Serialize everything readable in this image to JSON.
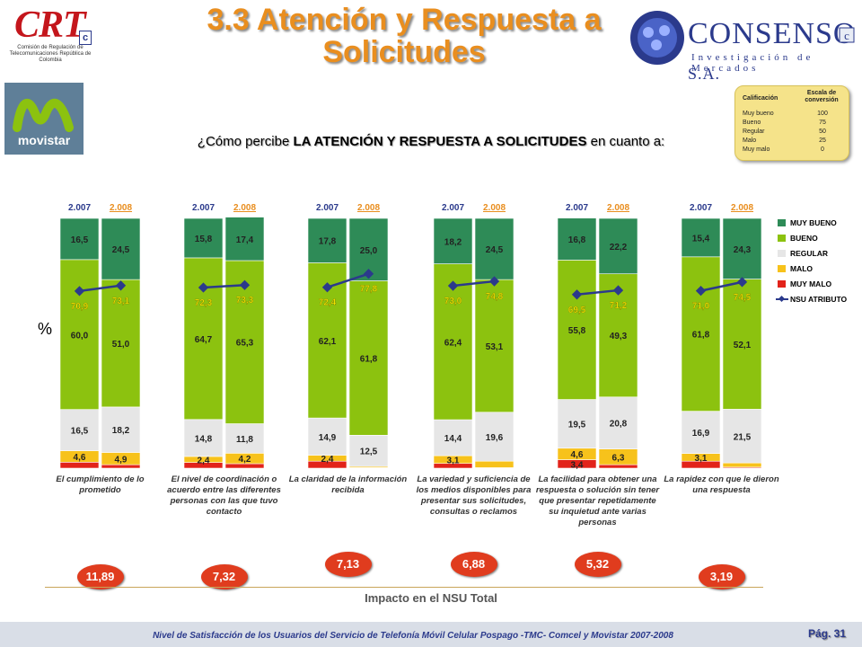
{
  "slide": {
    "title": "3.3 Atención y Respuesta a Solicitudes",
    "question_plain": "¿Cómo percibe ",
    "question_bold": "LA ATENCIÓN Y RESPUESTA A SOLICITUDES",
    "question_tail": " en cuanto a:",
    "percent_label": "%",
    "impact_title": "Impacto en el NSU Total",
    "footer": "Nivel de Satisfacción de los Usuarios del Servicio de Telefonía Móvil Celular Pospago -TMC- Comcel y Movistar 2007-2008",
    "page": "Pág. 31"
  },
  "logos": {
    "crt_mark": "CRT",
    "crt_c": "c",
    "crt_sub": "Comisión de Regulación de Telecomunicaciones República de Colombia",
    "consenso_name": "CONSENSO",
    "consenso_sa": " S.A.",
    "consenso_sub": "Investigación de Mercados",
    "movistar": "movistar"
  },
  "scale": {
    "col1": "Calificación",
    "col2": "Escala de conversión",
    "rows": [
      {
        "label": "Muy bueno",
        "value": "100"
      },
      {
        "label": "Bueno",
        "value": "75"
      },
      {
        "label": "Regular",
        "value": "50"
      },
      {
        "label": "Malo",
        "value": "25"
      },
      {
        "label": "Muy malo",
        "value": "0"
      }
    ]
  },
  "legend": [
    {
      "key": "muy_bueno",
      "label": "MUY BUENO"
    },
    {
      "key": "bueno",
      "label": "BUENO"
    },
    {
      "key": "regular",
      "label": "REGULAR"
    },
    {
      "key": "malo",
      "label": "MALO"
    },
    {
      "key": "muy_malo",
      "label": "MUY MALO"
    },
    {
      "key": "nsu",
      "label": "NSU ATRIBUTO"
    }
  ],
  "colors": {
    "muy_bueno": "#2e8b57",
    "bueno": "#8cc20f",
    "regular": "#e6e6e6",
    "malo": "#f7c21b",
    "muy_malo": "#e2231a",
    "nsu": "#2b3a8c",
    "year_2008": "#e98e1f",
    "year_2007": "#2b3a8c"
  },
  "chart_data": {
    "type": "bar",
    "stacked": true,
    "ylim": [
      0,
      100
    ],
    "year_labels": [
      "2.007",
      "2.008"
    ],
    "groups": [
      {
        "label": "El cumplimiento de lo prometido",
        "impact": "11,89",
        "bars": [
          {
            "year": "2.007",
            "muy_malo": 2.4,
            "malo": 4.6,
            "regular": 16.5,
            "bueno": 60.0,
            "muy_bueno": 16.5,
            "nsu": 70.9,
            "labels": {
              "muy_malo": "",
              "malo": "4,6",
              "regular": "16,5",
              "bueno": "60,0",
              "muy_bueno": "16,5",
              "nsu": "70,9"
            }
          },
          {
            "year": "2.008",
            "muy_malo": 1.4,
            "malo": 4.9,
            "regular": 18.2,
            "bueno": 51.0,
            "muy_bueno": 24.5,
            "nsu": 73.1,
            "labels": {
              "muy_malo": "",
              "malo": "4,9",
              "regular": "18,2",
              "bueno": "51,0",
              "muy_bueno": "24,5",
              "nsu": "73,1"
            }
          }
        ]
      },
      {
        "label": "El nivel de coordinación o acuerdo entre las diferentes personas con las que tuvo contacto",
        "impact": "7,32",
        "bars": [
          {
            "year": "2.007",
            "muy_malo": 2.3,
            "malo": 2.4,
            "regular": 14.8,
            "bueno": 64.7,
            "muy_bueno": 15.8,
            "nsu": 72.3,
            "labels": {
              "muy_malo": "",
              "malo": "2,4",
              "regular": "14,8",
              "bueno": "64,7",
              "muy_bueno": "15,8",
              "nsu": "72,3"
            }
          },
          {
            "year": "2.008",
            "muy_malo": 1.8,
            "malo": 4.2,
            "regular": 11.8,
            "bueno": 65.3,
            "muy_bueno": 17.4,
            "nsu": 73.3,
            "labels": {
              "muy_malo": "",
              "malo": "4,2",
              "regular": "11,8",
              "bueno": "65,3",
              "muy_bueno": "17,4",
              "nsu": "73,3"
            }
          }
        ]
      },
      {
        "label": "La claridad de la información recibida",
        "impact": "7,13",
        "bars": [
          {
            "year": "2.007",
            "muy_malo": 2.8,
            "malo": 2.4,
            "regular": 14.9,
            "bueno": 62.1,
            "muy_bueno": 17.8,
            "nsu": 72.4,
            "labels": {
              "muy_malo": "",
              "malo": "2,4",
              "regular": "14,9",
              "bueno": "62,1",
              "muy_bueno": "17,8",
              "nsu": "72,4"
            }
          },
          {
            "year": "2.008",
            "muy_malo": 0.2,
            "malo": 0.5,
            "regular": 12.5,
            "bueno": 61.8,
            "muy_bueno": 25.0,
            "nsu": 77.8,
            "labels": {
              "muy_malo": "",
              "malo": "",
              "regular": "12,5",
              "bueno": "61,8",
              "muy_bueno": "25,0",
              "nsu": "77,8"
            }
          }
        ]
      },
      {
        "label": "La variedad y suficiencia de los medios disponibles para presentar sus solicitudes, consultas o reclamos",
        "impact": "6,88",
        "bars": [
          {
            "year": "2.007",
            "muy_malo": 1.9,
            "malo": 3.1,
            "regular": 14.4,
            "bueno": 62.4,
            "muy_bueno": 18.2,
            "nsu": 73.0,
            "labels": {
              "muy_malo": "",
              "malo": "3,1",
              "regular": "14,4",
              "bueno": "62,4",
              "muy_bueno": "18,2",
              "nsu": "73,0"
            }
          },
          {
            "year": "2.008",
            "muy_malo": 0.2,
            "malo": 2.6,
            "regular": 19.6,
            "bueno": 53.1,
            "muy_bueno": 24.5,
            "nsu": 74.8,
            "labels": {
              "muy_malo": "",
              "malo": "",
              "regular": "19,6",
              "bueno": "53,1",
              "muy_bueno": "24,5",
              "nsu": "74,8"
            }
          }
        ]
      },
      {
        "label": "La facilidad para obtener una respuesta o solución sin tener que presentar repetidamente su inquietud ante varias personas",
        "impact": "5,32",
        "bars": [
          {
            "year": "2.007",
            "muy_malo": 3.4,
            "malo": 4.6,
            "regular": 19.5,
            "bueno": 55.8,
            "muy_bueno": 16.8,
            "nsu": 69.5,
            "labels": {
              "muy_malo": "3,4",
              "malo": "4,6",
              "regular": "19,5",
              "bueno": "55,8",
              "muy_bueno": "16,8",
              "nsu": "69,5"
            }
          },
          {
            "year": "2.008",
            "muy_malo": 1.4,
            "malo": 6.3,
            "regular": 20.8,
            "bueno": 49.3,
            "muy_bueno": 22.2,
            "nsu": 71.2,
            "labels": {
              "muy_malo": "",
              "malo": "6,3",
              "regular": "20,8",
              "bueno": "49,3",
              "muy_bueno": "22,2",
              "nsu": "71,2"
            }
          }
        ]
      },
      {
        "label": "La rapidez con que le dieron una respuesta",
        "impact": "3,19",
        "bars": [
          {
            "year": "2.007",
            "muy_malo": 2.8,
            "malo": 3.1,
            "regular": 16.9,
            "bueno": 61.8,
            "muy_bueno": 15.4,
            "nsu": 71.0,
            "labels": {
              "muy_malo": "",
              "malo": "3,1",
              "regular": "16,9",
              "bueno": "61,8",
              "muy_bueno": "15,4",
              "nsu": "71,0"
            }
          },
          {
            "year": "2.008",
            "muy_malo": 0.4,
            "malo": 1.7,
            "regular": 21.5,
            "bueno": 52.1,
            "muy_bueno": 24.3,
            "nsu": 74.5,
            "labels": {
              "muy_malo": "",
              "malo": "",
              "regular": "21,5",
              "bueno": "52,1",
              "muy_bueno": "24,3",
              "nsu": "74,5"
            }
          }
        ]
      }
    ]
  }
}
